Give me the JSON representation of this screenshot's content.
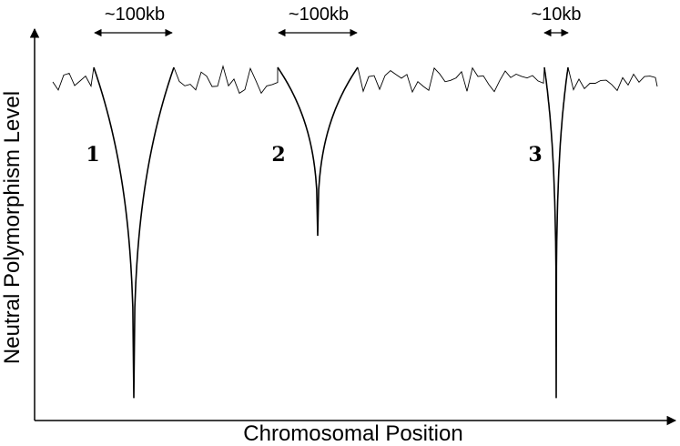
{
  "axes": {
    "x_label": "Chromosomal Position",
    "y_label": "Neutral Polymorphism Level"
  },
  "valleys": [
    {
      "label": "1",
      "span_label": "~100kb",
      "depth": 0.96,
      "width_class": "wide"
    },
    {
      "label": "2",
      "span_label": "~100kb",
      "depth": 0.47,
      "width_class": "wide"
    },
    {
      "label": "3",
      "span_label": "~10kb",
      "depth": 0.96,
      "width_class": "narrow"
    }
  ],
  "colors": {
    "line": "#000000",
    "background": "#ffffff"
  }
}
